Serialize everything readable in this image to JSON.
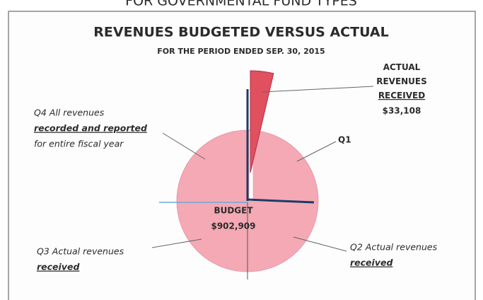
{
  "chart_data": {
    "type": "pie",
    "heading": "FOR GOVERNMENTAL FUND TYPES",
    "title": "REVENUES BUDGETED VERSUS ACTUAL",
    "subtitle": "FOR THE PERIOD ENDED SEP. 30, 2015",
    "categories": [
      "ACTUAL REVENUES RECEIVED",
      "BUDGET"
    ],
    "values": [
      33108,
      902909
    ],
    "value_labels": [
      "$33,108",
      "$902,909"
    ],
    "colors": [
      "#e0505e",
      "#f4a9b5"
    ],
    "annotations": [
      {
        "lines": [
          "Q1"
        ]
      },
      {
        "lines": [
          "Q4 All revenues",
          "recorded and reported",
          "for entire fiscal year"
        ]
      },
      {
        "lines": [
          "Q3 Actual revenues",
          "received"
        ]
      },
      {
        "lines": [
          "Q2 Actual revenues",
          "received"
        ]
      }
    ]
  }
}
